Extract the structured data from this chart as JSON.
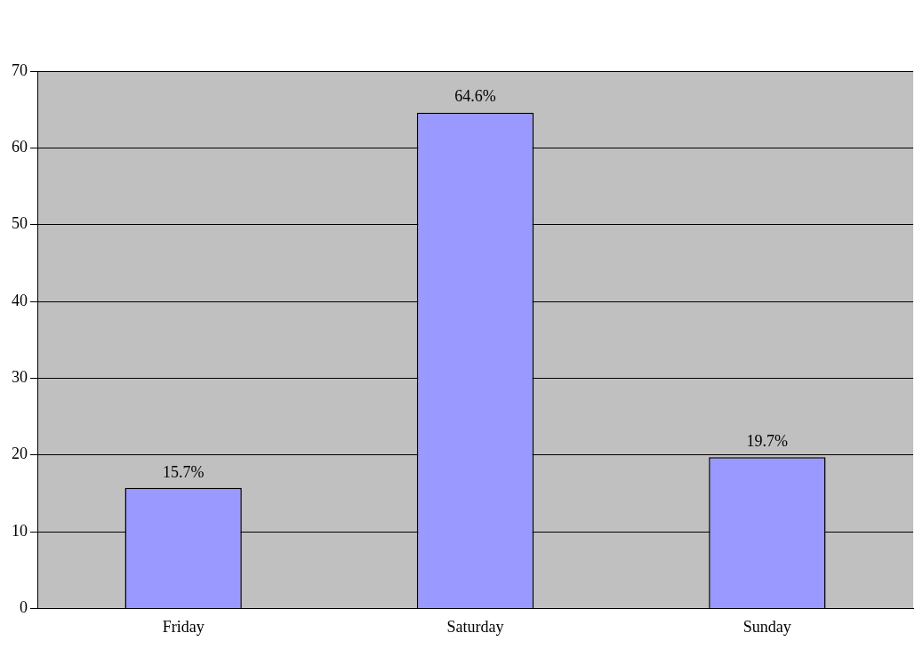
{
  "chart_data": {
    "type": "bar",
    "categories": [
      "Friday",
      "Saturday",
      "Sunday"
    ],
    "values": [
      15.7,
      64.6,
      19.7
    ],
    "value_labels": [
      "15.7%",
      "64.6%",
      "19.7%"
    ],
    "color": "#9999ff",
    "ylim": [
      0,
      70
    ],
    "yticks": [
      0,
      10,
      20,
      30,
      40,
      50,
      60,
      70
    ],
    "grid": "y",
    "legend": false
  }
}
